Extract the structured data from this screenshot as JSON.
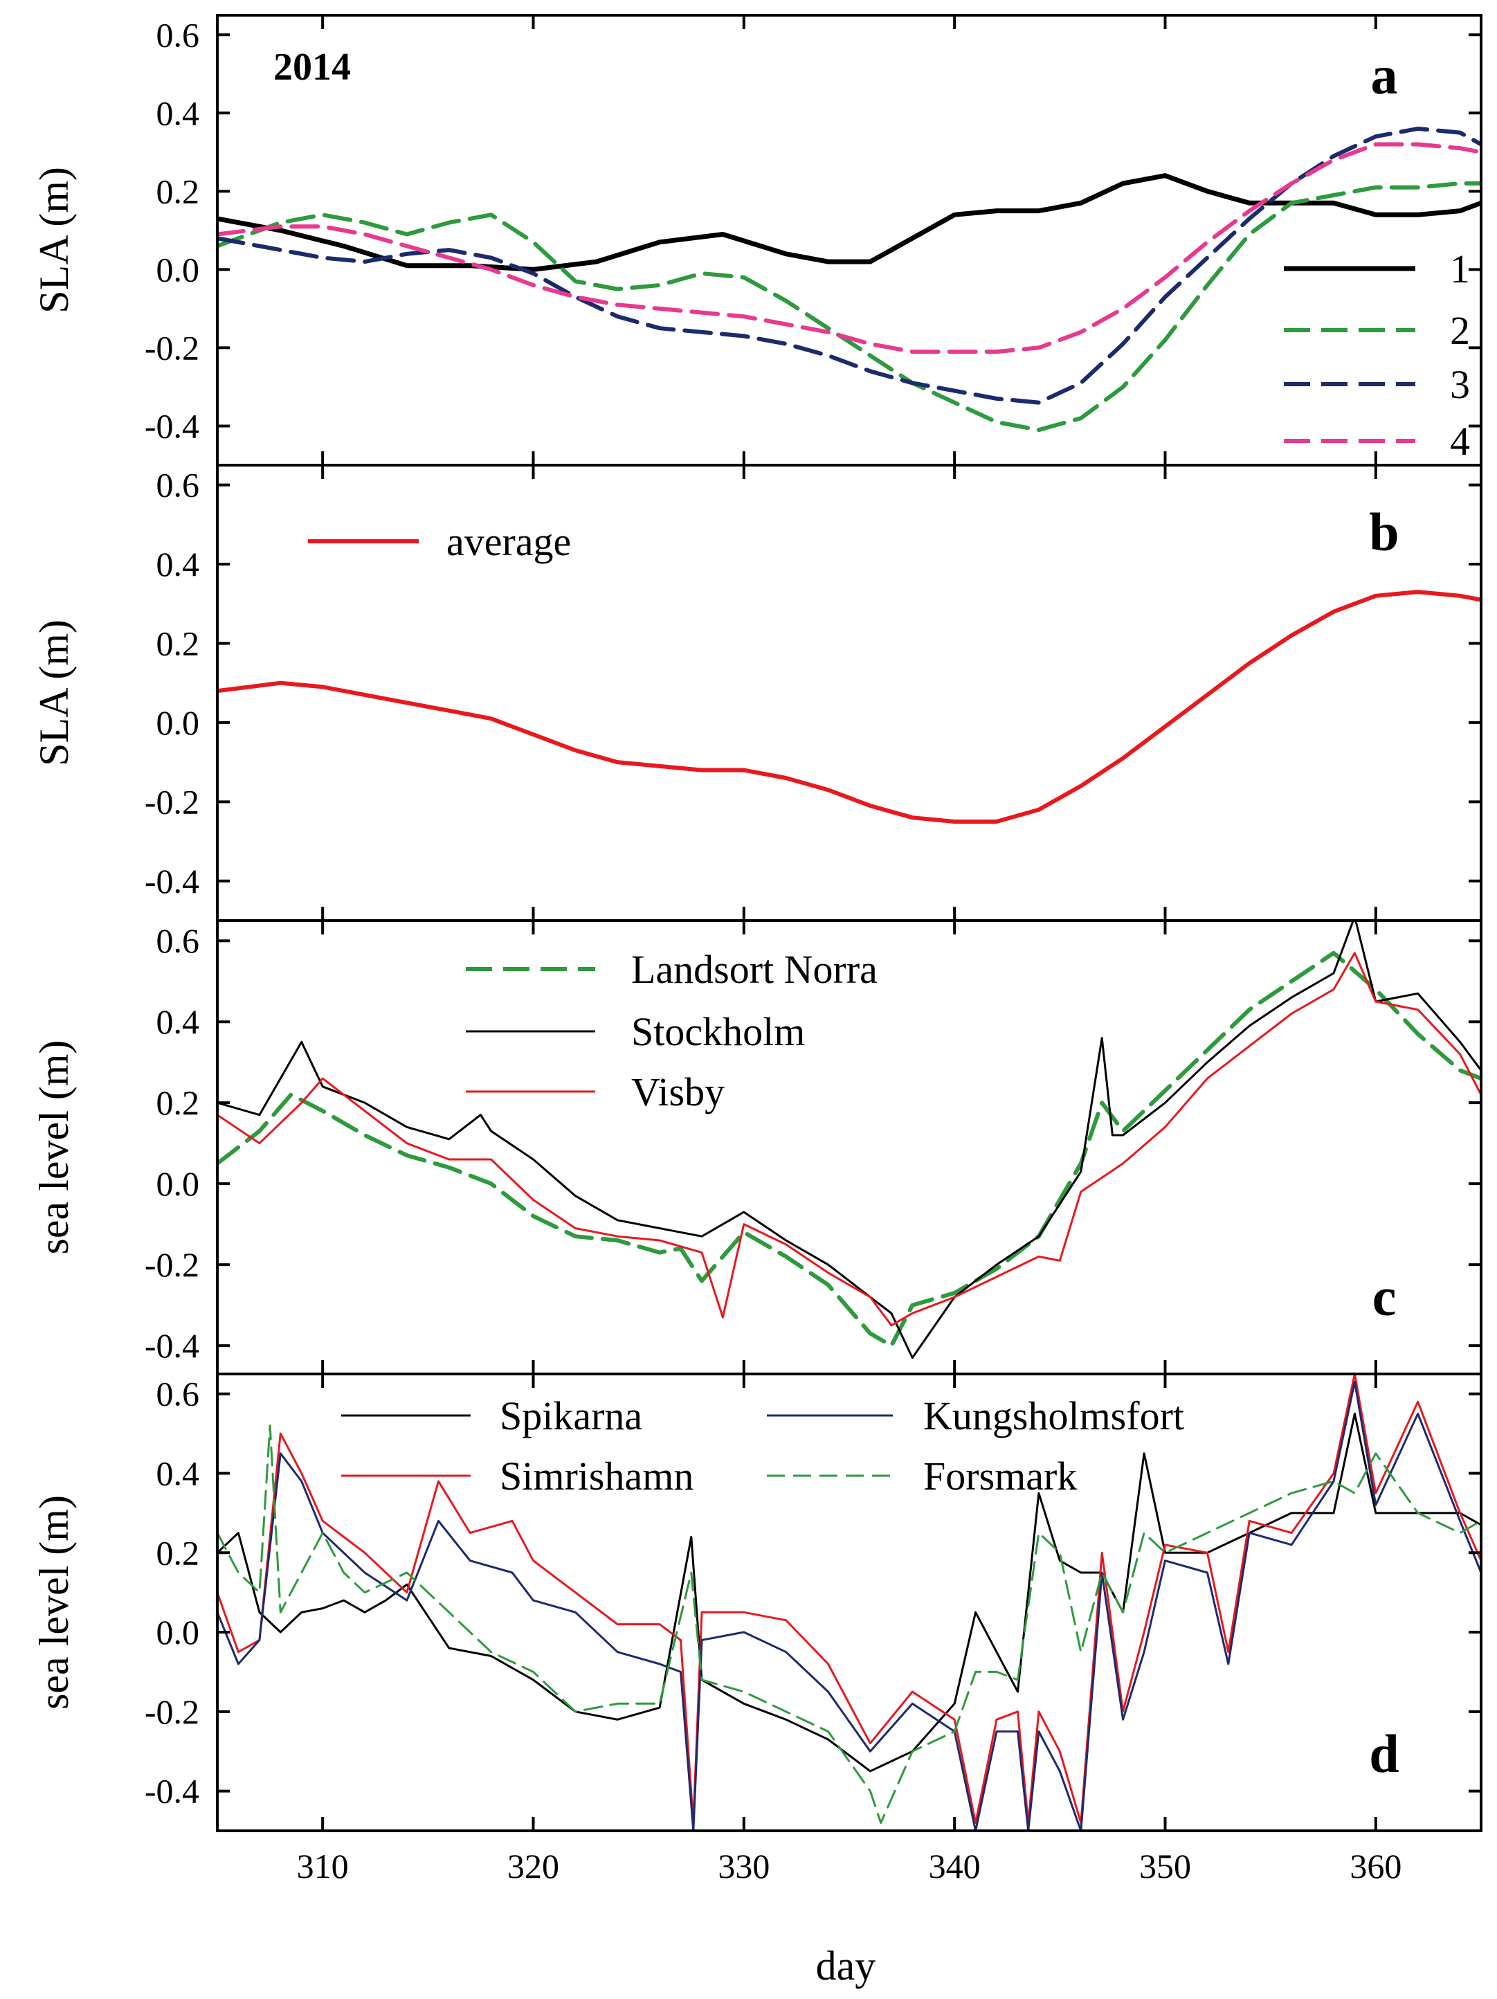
{
  "chart_data": [
    {
      "panel": "a",
      "type": "line",
      "annotation": "2014",
      "ylabel": "SLA (m)",
      "ylim": [
        -0.5,
        0.65
      ],
      "yticks": [
        "0.6",
        "0.4",
        "0.2",
        "0.0",
        "-0.2",
        "-0.4"
      ],
      "xlim": [
        305,
        365
      ],
      "legend_position": "right",
      "series": [
        {
          "name": "1",
          "color": "#000000",
          "dash": "solid",
          "width": 7,
          "x": [
            305,
            308,
            311,
            314,
            317,
            320,
            323,
            326,
            329,
            332,
            334,
            336,
            338,
            340,
            342,
            344,
            346,
            348,
            350,
            352,
            354,
            356,
            358,
            360,
            362,
            364,
            365
          ],
          "values": [
            0.13,
            0.1,
            0.06,
            0.01,
            0.01,
            0.0,
            0.02,
            0.07,
            0.09,
            0.04,
            0.02,
            0.02,
            0.08,
            0.14,
            0.15,
            0.15,
            0.17,
            0.22,
            0.24,
            0.2,
            0.17,
            0.17,
            0.17,
            0.14,
            0.14,
            0.15,
            0.17
          ]
        },
        {
          "name": "2",
          "color": "#2e9a3e",
          "dash": "dashed",
          "width": 6,
          "x": [
            305,
            308,
            310,
            312,
            314,
            316,
            318,
            320,
            322,
            324,
            326,
            328,
            330,
            332,
            334,
            336,
            338,
            340,
            342,
            344,
            346,
            348,
            350,
            352,
            354,
            356,
            358,
            360,
            362,
            364,
            365
          ],
          "values": [
            0.06,
            0.12,
            0.14,
            0.12,
            0.09,
            0.12,
            0.14,
            0.07,
            -0.03,
            -0.05,
            -0.04,
            -0.01,
            -0.02,
            -0.08,
            -0.15,
            -0.22,
            -0.29,
            -0.34,
            -0.39,
            -0.41,
            -0.38,
            -0.3,
            -0.18,
            -0.04,
            0.09,
            0.17,
            0.19,
            0.21,
            0.21,
            0.22,
            0.22
          ]
        },
        {
          "name": "3",
          "color": "#1c2a6e",
          "dash": "dashed",
          "width": 6,
          "x": [
            305,
            308,
            310,
            312,
            314,
            316,
            318,
            320,
            322,
            324,
            326,
            328,
            330,
            332,
            334,
            336,
            338,
            340,
            342,
            344,
            346,
            348,
            350,
            352,
            354,
            356,
            358,
            360,
            362,
            364,
            365
          ],
          "values": [
            0.08,
            0.05,
            0.03,
            0.02,
            0.04,
            0.05,
            0.03,
            -0.01,
            -0.07,
            -0.12,
            -0.15,
            -0.16,
            -0.17,
            -0.19,
            -0.22,
            -0.26,
            -0.29,
            -0.31,
            -0.33,
            -0.34,
            -0.29,
            -0.19,
            -0.07,
            0.03,
            0.13,
            0.22,
            0.29,
            0.34,
            0.36,
            0.35,
            0.32
          ]
        },
        {
          "name": "4",
          "color": "#e8398e",
          "dash": "dashed",
          "width": 6,
          "x": [
            305,
            308,
            310,
            312,
            314,
            316,
            318,
            320,
            322,
            324,
            326,
            328,
            330,
            332,
            334,
            336,
            338,
            340,
            342,
            344,
            346,
            348,
            350,
            352,
            354,
            356,
            358,
            360,
            362,
            364,
            365
          ],
          "values": [
            0.09,
            0.11,
            0.11,
            0.09,
            0.06,
            0.03,
            0.0,
            -0.04,
            -0.07,
            -0.09,
            -0.1,
            -0.11,
            -0.12,
            -0.14,
            -0.16,
            -0.19,
            -0.21,
            -0.21,
            -0.21,
            -0.2,
            -0.16,
            -0.1,
            -0.02,
            0.07,
            0.15,
            0.22,
            0.28,
            0.32,
            0.32,
            0.31,
            0.3
          ]
        }
      ]
    },
    {
      "panel": "b",
      "type": "line",
      "ylabel": "SLA (m)",
      "ylim": [
        -0.5,
        0.65
      ],
      "yticks": [
        "0.6",
        "0.4",
        "0.2",
        "0.0",
        "-0.2",
        "-0.4"
      ],
      "xlim": [
        305,
        365
      ],
      "legend_position": "top-left",
      "series": [
        {
          "name": "average",
          "color": "#e8191e",
          "dash": "solid",
          "width": 6,
          "x": [
            305,
            308,
            310,
            312,
            314,
            316,
            318,
            320,
            322,
            324,
            326,
            328,
            330,
            332,
            334,
            336,
            338,
            340,
            342,
            344,
            346,
            348,
            350,
            352,
            354,
            356,
            358,
            360,
            362,
            364,
            365
          ],
          "values": [
            0.08,
            0.1,
            0.09,
            0.07,
            0.05,
            0.03,
            0.01,
            -0.03,
            -0.07,
            -0.1,
            -0.11,
            -0.12,
            -0.12,
            -0.14,
            -0.17,
            -0.21,
            -0.24,
            -0.25,
            -0.25,
            -0.22,
            -0.16,
            -0.09,
            -0.01,
            0.07,
            0.15,
            0.22,
            0.28,
            0.32,
            0.33,
            0.32,
            0.31
          ]
        }
      ]
    },
    {
      "panel": "c",
      "type": "line",
      "ylabel": "sea level (m)",
      "ylim": [
        -0.47,
        0.65
      ],
      "yticks": [
        "0.6",
        "0.4",
        "0.2",
        "0.0",
        "-0.2",
        "-0.4"
      ],
      "xlim": [
        305,
        365
      ],
      "legend_position": "top-center",
      "series": [
        {
          "name": "Landsort Norra",
          "color": "#2e9a3e",
          "dash": "dashed",
          "width": 6,
          "x": [
            305,
            307,
            308.5,
            310,
            312,
            314,
            316,
            318,
            320,
            322,
            324,
            326,
            327,
            328,
            330,
            332,
            334,
            336,
            337,
            338,
            340,
            342,
            344,
            346,
            347,
            348,
            350,
            352,
            354,
            356,
            358,
            360,
            362,
            364,
            365
          ],
          "values": [
            0.05,
            0.13,
            0.22,
            0.18,
            0.12,
            0.07,
            0.04,
            0.0,
            -0.08,
            -0.13,
            -0.14,
            -0.17,
            -0.16,
            -0.24,
            -0.12,
            -0.18,
            -0.25,
            -0.37,
            -0.4,
            -0.3,
            -0.27,
            -0.21,
            -0.13,
            0.05,
            0.2,
            0.13,
            0.23,
            0.33,
            0.43,
            0.5,
            0.57,
            0.48,
            0.37,
            0.28,
            0.26
          ]
        },
        {
          "name": "Stockholm",
          "color": "#000000",
          "dash": "solid",
          "width": 3,
          "x": [
            305,
            307,
            309,
            310,
            312,
            314,
            316,
            317.5,
            318,
            320,
            322,
            324,
            326,
            328,
            330,
            332,
            334,
            336,
            337,
            338,
            340,
            342,
            344,
            346,
            347,
            347.5,
            348,
            350,
            352,
            354,
            356,
            358,
            359,
            360,
            362,
            364,
            365
          ],
          "values": [
            0.2,
            0.17,
            0.35,
            0.24,
            0.2,
            0.14,
            0.11,
            0.17,
            0.13,
            0.06,
            -0.03,
            -0.09,
            -0.11,
            -0.13,
            -0.07,
            -0.14,
            -0.2,
            -0.28,
            -0.32,
            -0.43,
            -0.28,
            -0.2,
            -0.13,
            0.03,
            0.36,
            0.12,
            0.12,
            0.2,
            0.3,
            0.39,
            0.46,
            0.52,
            0.66,
            0.45,
            0.47,
            0.35,
            0.28
          ]
        },
        {
          "name": "Visby",
          "color": "#e8191e",
          "dash": "solid",
          "width": 3,
          "x": [
            305,
            307,
            309,
            310,
            312,
            314,
            316,
            318,
            320,
            322,
            324,
            326,
            328,
            329,
            330,
            332,
            334,
            336,
            337,
            338,
            340,
            342,
            344,
            345,
            346,
            348,
            350,
            352,
            354,
            356,
            358,
            359,
            360,
            362,
            364,
            365
          ],
          "values": [
            0.17,
            0.1,
            0.2,
            0.26,
            0.18,
            0.1,
            0.06,
            0.06,
            -0.04,
            -0.11,
            -0.13,
            -0.14,
            -0.17,
            -0.33,
            -0.1,
            -0.15,
            -0.22,
            -0.28,
            -0.35,
            -0.32,
            -0.28,
            -0.23,
            -0.18,
            -0.19,
            -0.02,
            0.05,
            0.14,
            0.26,
            0.34,
            0.42,
            0.48,
            0.57,
            0.45,
            0.43,
            0.32,
            0.22
          ]
        }
      ]
    },
    {
      "panel": "d",
      "type": "line",
      "ylabel": "sea level (m)",
      "ylim": [
        -0.5,
        0.65
      ],
      "yticks": [
        "0.6",
        "0.4",
        "0.2",
        "0.0",
        "-0.2",
        "-0.4"
      ],
      "xlim": [
        305,
        365
      ],
      "legend_position": "top",
      "series": [
        {
          "name": "Spikarna",
          "color": "#000000",
          "dash": "solid",
          "width": 3,
          "x": [
            305,
            306,
            307,
            308,
            309,
            310,
            311,
            312,
            313,
            314,
            316,
            318,
            320,
            322,
            324,
            326,
            327.5,
            328,
            330,
            332,
            334,
            336,
            338,
            340,
            341,
            342,
            343,
            344,
            345,
            346,
            347,
            348,
            349,
            350,
            352,
            354,
            356,
            358,
            359,
            360,
            362,
            364,
            365
          ],
          "values": [
            0.2,
            0.25,
            0.05,
            0.0,
            0.05,
            0.06,
            0.08,
            0.05,
            0.08,
            0.12,
            -0.04,
            -0.06,
            -0.12,
            -0.2,
            -0.22,
            -0.19,
            0.24,
            -0.12,
            -0.18,
            -0.22,
            -0.27,
            -0.35,
            -0.3,
            -0.18,
            0.05,
            -0.05,
            -0.15,
            0.35,
            0.18,
            0.15,
            0.15,
            0.05,
            0.45,
            0.2,
            0.2,
            0.25,
            0.3,
            0.3,
            0.55,
            0.3,
            0.3,
            0.3,
            0.27
          ]
        },
        {
          "name": "Simrishamn",
          "color": "#e8191e",
          "dash": "solid",
          "width": 3,
          "x": [
            305,
            306,
            307,
            308,
            309,
            310,
            312,
            314,
            315.5,
            317,
            319,
            320,
            322,
            324,
            326,
            327,
            327.6,
            328,
            330,
            332,
            334,
            336,
            338,
            340,
            341,
            342,
            343,
            343.5,
            344,
            345,
            346,
            347,
            348,
            349,
            350,
            352,
            353,
            354,
            356,
            358,
            359,
            360,
            362,
            364,
            365
          ],
          "values": [
            0.1,
            -0.05,
            -0.02,
            0.5,
            0.4,
            0.28,
            0.2,
            0.1,
            0.38,
            0.25,
            0.28,
            0.18,
            0.1,
            0.02,
            0.02,
            -0.02,
            -0.48,
            0.05,
            0.05,
            0.03,
            -0.08,
            -0.28,
            -0.15,
            -0.22,
            -0.48,
            -0.22,
            -0.2,
            -0.48,
            -0.2,
            -0.3,
            -0.48,
            0.2,
            -0.2,
            0.0,
            0.22,
            0.2,
            -0.05,
            0.28,
            0.25,
            0.4,
            0.65,
            0.35,
            0.58,
            0.3,
            0.18
          ]
        },
        {
          "name": "Kungsholmsfort",
          "color": "#1c2a6e",
          "dash": "solid",
          "width": 3,
          "x": [
            305,
            306,
            307,
            308,
            309,
            310,
            312,
            314,
            315.5,
            317,
            319,
            320,
            322,
            324,
            326,
            327,
            327.6,
            328,
            330,
            332,
            334,
            336,
            338,
            340,
            341,
            342,
            343,
            343.5,
            344,
            345,
            346,
            347,
            348,
            349,
            350,
            352,
            353,
            354,
            356,
            358,
            359,
            360,
            362,
            364,
            365
          ],
          "values": [
            0.05,
            -0.08,
            -0.02,
            0.45,
            0.38,
            0.25,
            0.15,
            0.08,
            0.28,
            0.18,
            0.15,
            0.08,
            0.05,
            -0.05,
            -0.08,
            -0.1,
            -0.5,
            -0.02,
            0.0,
            -0.05,
            -0.15,
            -0.3,
            -0.18,
            -0.25,
            -0.5,
            -0.25,
            -0.25,
            -0.5,
            -0.25,
            -0.35,
            -0.5,
            0.15,
            -0.22,
            -0.05,
            0.18,
            0.15,
            -0.08,
            0.25,
            0.22,
            0.38,
            0.63,
            0.32,
            0.55,
            0.28,
            0.15
          ]
        },
        {
          "name": "Forsmark",
          "color": "#2e9a3e",
          "dash": "dashed",
          "width": 3,
          "x": [
            305,
            306,
            307,
            307.5,
            308,
            309,
            310,
            311,
            312,
            314,
            316,
            318,
            320,
            322,
            324,
            326,
            327.5,
            328,
            330,
            332,
            334,
            336,
            336.5,
            338,
            340,
            341,
            342,
            343,
            344,
            345,
            346,
            347,
            348,
            349,
            350,
            352,
            354,
            356,
            358,
            359,
            360,
            362,
            364,
            365
          ],
          "values": [
            0.25,
            0.15,
            0.1,
            0.52,
            0.05,
            0.15,
            0.25,
            0.15,
            0.1,
            0.15,
            0.05,
            -0.05,
            -0.1,
            -0.2,
            -0.18,
            -0.18,
            0.15,
            -0.12,
            -0.15,
            -0.2,
            -0.25,
            -0.4,
            -0.48,
            -0.3,
            -0.25,
            -0.1,
            -0.1,
            -0.12,
            0.25,
            0.2,
            -0.05,
            0.15,
            0.05,
            0.25,
            0.2,
            0.25,
            0.3,
            0.35,
            0.38,
            0.35,
            0.45,
            0.3,
            0.25,
            0.28
          ]
        }
      ]
    }
  ],
  "panel_letters": [
    "a",
    "b",
    "c",
    "d"
  ],
  "x_axis": {
    "label": "day",
    "ticks": [
      "310",
      "320",
      "330",
      "340",
      "350",
      "360"
    ],
    "tick_values": [
      310,
      320,
      330,
      340,
      350,
      360
    ]
  }
}
